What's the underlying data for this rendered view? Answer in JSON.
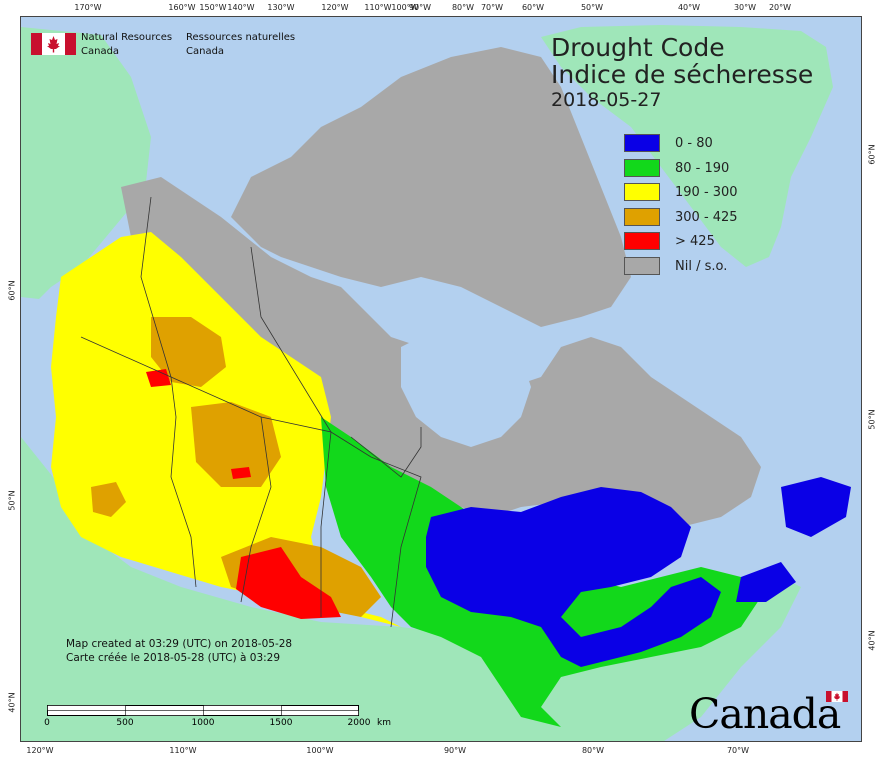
{
  "header": {
    "agency_en_line1": "Natural Resources",
    "agency_en_line2": "Canada",
    "agency_fr_line1": "Ressources naturelles",
    "agency_fr_line2": "Canada"
  },
  "title": {
    "line1": "Drought Code",
    "line2": "Indice de sécheresse",
    "date": "2018-05-27"
  },
  "legend": [
    {
      "label": "0 - 80",
      "color": "#0a00e6"
    },
    {
      "label": "80 - 190",
      "color": "#12d81b"
    },
    {
      "label": "190 - 300",
      "color": "#ffff00"
    },
    {
      "label": "300 - 425",
      "color": "#dfa100"
    },
    {
      "label": "> 425",
      "color": "#ff0000"
    },
    {
      "label": "Nil / s.o.",
      "color": "#a8a8a8"
    }
  ],
  "colors": {
    "water": "#b3d0ef",
    "foreign_land": "#9fe6b9",
    "no_data": "#a8a8a8",
    "boundary": "#333333"
  },
  "axes": {
    "top_longitudes": [
      "170°W",
      "160°W",
      "150°W",
      "140°W",
      "130°W",
      "120°W",
      "110°W",
      "100°W",
      "90°W",
      "80°W",
      "70°W",
      "60°W",
      "50°W",
      "40°W",
      "30°W",
      "20°W"
    ],
    "bottom_longitudes": [
      "120°W",
      "110°W",
      "100°W",
      "90°W",
      "80°W",
      "70°W"
    ],
    "left_latitudes": [
      "60°N",
      "50°N",
      "40°N"
    ],
    "right_latitudes": [
      "60°N",
      "50°N",
      "40°N"
    ]
  },
  "footer": {
    "created_en": "Map created at 03:29 (UTC) on 2018-05-28",
    "created_fr": "Carte créée le 2018-05-28 (UTC) à 03:29",
    "scale_labels": [
      "0",
      "500",
      "1000",
      "1500",
      "2000"
    ],
    "scale_unit": "km",
    "wordmark": "Canada"
  }
}
